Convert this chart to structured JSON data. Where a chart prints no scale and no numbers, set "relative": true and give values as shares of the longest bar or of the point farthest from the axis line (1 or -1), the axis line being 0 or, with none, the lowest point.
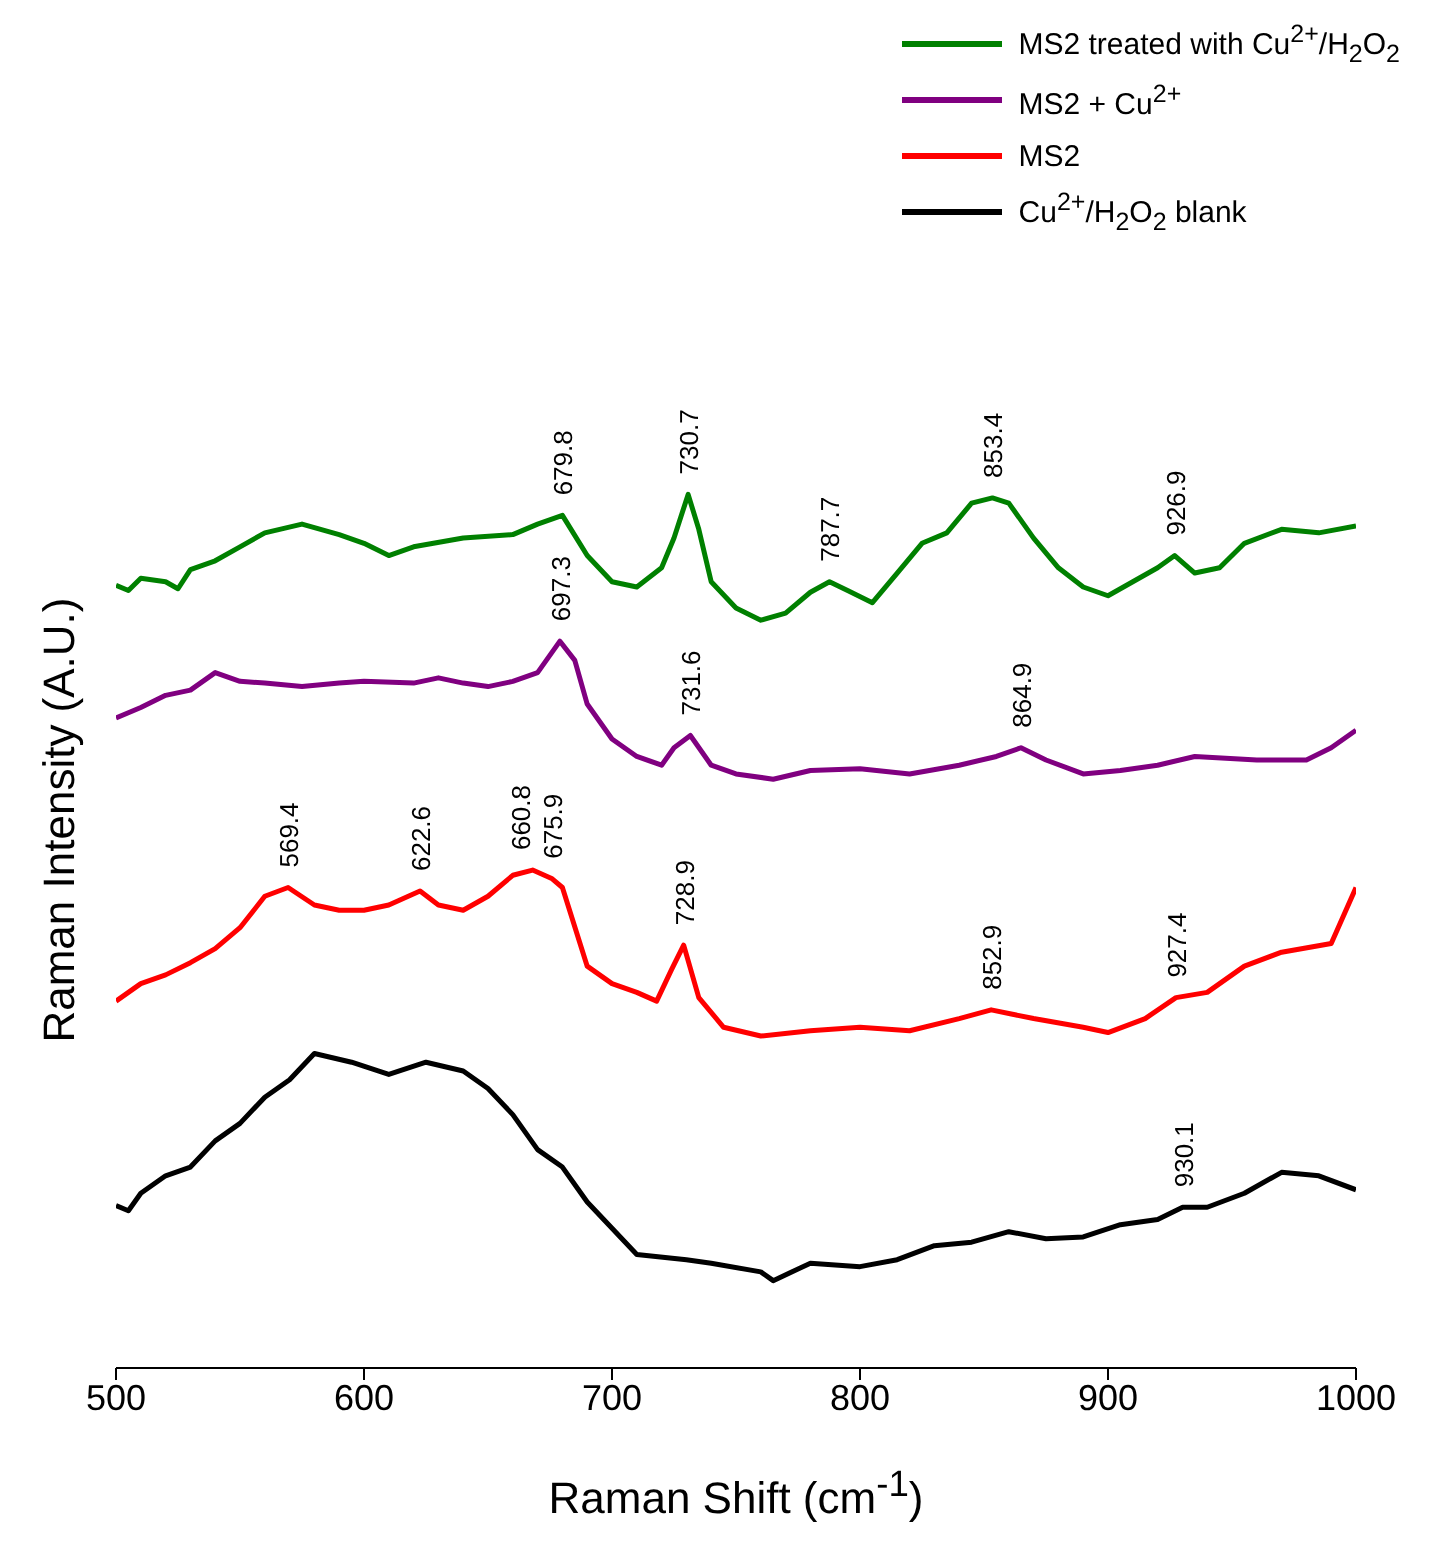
{
  "chart_data": {
    "type": "line",
    "relative": true,
    "xlabel": "Raman Shift (cm$^{-1}$)",
    "ylabel": "Raman Intensity (A.U.)",
    "xlim": [
      500,
      1000
    ],
    "xticks": [
      500,
      600,
      700,
      800,
      900,
      1000
    ],
    "legend": "top right",
    "marker": "none",
    "line_style": "solid",
    "series": [
      {
        "name": "MS2 treated with Cu$^{2+}$/H$_{2}$O$_{2}$",
        "color": "#008000",
        "x": [
          500,
          505,
          510,
          520,
          525,
          530,
          540,
          550,
          560,
          575,
          590,
          600,
          610,
          620,
          640,
          660,
          670,
          680,
          690,
          700,
          710,
          720,
          725,
          730.7,
          735,
          740,
          750,
          760,
          770,
          780,
          787.7,
          795,
          805,
          815,
          825,
          835,
          845,
          853.4,
          860,
          870,
          880,
          890,
          900,
          910,
          920,
          926.9,
          935,
          945,
          955,
          970,
          985,
          1000
        ],
        "values": [
          0.896,
          0.89,
          0.904,
          0.9,
          0.892,
          0.914,
          0.924,
          0.94,
          0.956,
          0.966,
          0.954,
          0.944,
          0.93,
          0.94,
          0.95,
          0.954,
          0.966,
          0.976,
          0.93,
          0.9,
          0.894,
          0.916,
          0.95,
          1,
          0.96,
          0.9,
          0.87,
          0.856,
          0.864,
          0.888,
          0.9,
          0.89,
          0.876,
          0.91,
          0.944,
          0.956,
          0.99,
          0.996,
          0.99,
          0.95,
          0.916,
          0.894,
          0.884,
          0.9,
          0.916,
          0.93,
          0.91,
          0.916,
          0.944,
          0.96,
          0.956,
          0.964
        ]
      },
      {
        "name": "MS2 + Cu$^{2+}$",
        "color": "#800080",
        "x": [
          500,
          510,
          520,
          530,
          540,
          550,
          560,
          575,
          590,
          600,
          620,
          630,
          640,
          650,
          660,
          670,
          679,
          685,
          690,
          700,
          710,
          720,
          725,
          731.6,
          740,
          750,
          765,
          780,
          800,
          820,
          840,
          855,
          864.9,
          875,
          890,
          905,
          920,
          935,
          960,
          980,
          990,
          1000
        ],
        "values": [
          0.744,
          0.756,
          0.77,
          0.776,
          0.796,
          0.786,
          0.784,
          0.78,
          0.784,
          0.786,
          0.784,
          0.79,
          0.784,
          0.78,
          0.786,
          0.796,
          0.832,
          0.81,
          0.76,
          0.72,
          0.7,
          0.69,
          0.71,
          0.724,
          0.69,
          0.68,
          0.674,
          0.684,
          0.686,
          0.68,
          0.69,
          0.7,
          0.71,
          0.696,
          0.68,
          0.684,
          0.69,
          0.7,
          0.696,
          0.696,
          0.71,
          0.73
        ]
      },
      {
        "name": "MS2",
        "color": "#ff0000",
        "x": [
          500,
          510,
          520,
          530,
          540,
          550,
          560,
          569.4,
          580,
          590,
          600,
          610,
          622.6,
          630,
          640,
          650,
          660,
          668,
          675.9,
          680,
          690,
          700,
          710,
          718,
          724,
          728.9,
          735,
          745,
          760,
          780,
          800,
          820,
          840,
          852.9,
          870,
          890,
          900,
          915,
          927.4,
          940,
          955,
          970,
          990,
          1000
        ],
        "values": [
          0.42,
          0.44,
          0.45,
          0.464,
          0.48,
          0.504,
          0.54,
          0.55,
          0.53,
          0.524,
          0.524,
          0.53,
          0.546,
          0.53,
          0.524,
          0.54,
          0.564,
          0.57,
          0.56,
          0.55,
          0.46,
          0.44,
          0.43,
          0.42,
          0.456,
          0.484,
          0.424,
          0.39,
          0.38,
          0.386,
          0.39,
          0.386,
          0.4,
          0.41,
          0.4,
          0.39,
          0.384,
          0.4,
          0.424,
          0.43,
          0.46,
          0.476,
          0.486,
          0.55
        ]
      },
      {
        "name": "Cu$^{2+}$/H$_{2}$O$_{2}$ blank",
        "color": "#000000",
        "x": [
          500,
          505,
          510,
          520,
          530,
          540,
          550,
          560,
          570,
          580,
          595,
          610,
          625,
          640,
          650,
          660,
          670,
          680,
          690,
          700,
          710,
          730,
          740,
          760,
          765,
          780,
          800,
          815,
          830,
          845,
          860,
          875,
          890,
          905,
          920,
          930.1,
          940,
          955,
          970,
          985,
          1000
        ],
        "values": [
          0.186,
          0.18,
          0.2,
          0.22,
          0.23,
          0.26,
          0.28,
          0.31,
          0.33,
          0.36,
          0.35,
          0.336,
          0.35,
          0.34,
          0.32,
          0.29,
          0.25,
          0.23,
          0.19,
          0.16,
          0.13,
          0.124,
          0.12,
          0.11,
          0.1,
          0.12,
          0.116,
          0.124,
          0.14,
          0.144,
          0.156,
          0.148,
          0.15,
          0.164,
          0.17,
          0.184,
          0.184,
          0.2,
          0.224,
          0.22,
          0.204
        ]
      }
    ],
    "annotations": [
      {
        "text": "679.8",
        "x": 679.8,
        "y": 0.976
      },
      {
        "text": "730.7",
        "x": 730.7,
        "y": 1
      },
      {
        "text": "787.7",
        "x": 787.7,
        "y": 0.9
      },
      {
        "text": "853.4",
        "x": 853.4,
        "y": 0.996
      },
      {
        "text": "926.9",
        "x": 926.9,
        "y": 0.93
      },
      {
        "text": "697.3",
        "x": 679,
        "y": 0.832
      },
      {
        "text": "731.6",
        "x": 731.6,
        "y": 0.724
      },
      {
        "text": "864.9",
        "x": 864.9,
        "y": 0.71
      },
      {
        "text": "569.4",
        "x": 569.4,
        "y": 0.55
      },
      {
        "text": "622.6",
        "x": 622.6,
        "y": 0.546
      },
      {
        "text": "660.8",
        "x": 663,
        "y": 0.57
      },
      {
        "text": "675.9",
        "x": 675.9,
        "y": 0.56
      },
      {
        "text": "728.9",
        "x": 728.9,
        "y": 0.484
      },
      {
        "text": "852.9",
        "x": 852.9,
        "y": 0.41
      },
      {
        "text": "927.4",
        "x": 927.4,
        "y": 0.424
      },
      {
        "text": "930.1",
        "x": 930.1,
        "y": 0.184
      }
    ]
  }
}
